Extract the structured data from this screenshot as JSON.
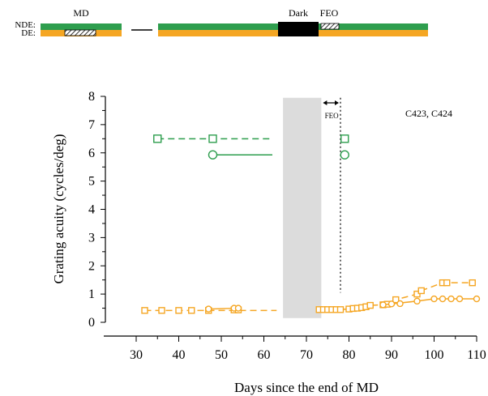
{
  "timeline": {
    "row_labels": [
      "NDE:",
      "DE:"
    ],
    "phase_labels": {
      "md": "MD",
      "dark": "Dark",
      "feo": "FEO"
    }
  },
  "colors": {
    "nde": "#2e9e4e",
    "de": "#f5a623",
    "dark_period": "#dcdcdc",
    "black": "#000000"
  },
  "chart_data": {
    "type": "scatter",
    "xlabel": "Days since the end of MD",
    "ylabel": "Grating acuity (cycles/deg)",
    "xlim": [
      30,
      110
    ],
    "ylim": [
      0,
      8
    ],
    "xticks": [
      30,
      40,
      50,
      60,
      70,
      80,
      90,
      100,
      110
    ],
    "yticks": [
      0,
      1,
      2,
      3,
      4,
      5,
      6,
      7,
      8
    ],
    "annotation": "C423, C424",
    "feo_label": "FEO",
    "dark_period": [
      64.5,
      73.5
    ],
    "feo_marker_x": 78,
    "series": [
      {
        "color": "#2e9e4e",
        "marker": "square",
        "dash": "dashed",
        "points": [
          [
            35,
            6.5
          ],
          [
            48,
            6.5
          ],
          [
            79,
            6.5
          ]
        ],
        "segments": [
          [
            [
              35,
              6.5
            ],
            [
              62,
              6.5
            ]
          ]
        ]
      },
      {
        "color": "#2e9e4e",
        "marker": "circle",
        "dash": "solid",
        "points": [
          [
            48,
            5.93
          ],
          [
            79,
            5.93
          ]
        ],
        "segments": [
          [
            [
              48,
              5.93
            ],
            [
              62,
              5.93
            ]
          ]
        ]
      },
      {
        "color": "#f5a623",
        "marker": "square",
        "dash": "dashed",
        "points": [
          [
            32,
            0.42
          ],
          [
            36,
            0.42
          ],
          [
            40,
            0.42
          ],
          [
            43,
            0.42
          ],
          [
            47,
            0.42
          ],
          [
            53,
            0.44
          ],
          [
            54,
            0.44
          ],
          [
            73,
            0.45
          ],
          [
            74,
            0.45
          ],
          [
            75,
            0.45
          ],
          [
            76,
            0.45
          ],
          [
            77,
            0.45
          ],
          [
            78,
            0.45
          ],
          [
            80,
            0.47
          ],
          [
            81,
            0.49
          ],
          [
            82,
            0.5
          ],
          [
            83,
            0.52
          ],
          [
            84,
            0.55
          ],
          [
            85,
            0.6
          ],
          [
            88,
            0.62
          ],
          [
            89,
            0.64
          ],
          [
            91,
            0.8
          ],
          [
            96,
            1.0
          ],
          [
            97,
            1.12
          ],
          [
            102,
            1.4
          ],
          [
            103,
            1.4
          ],
          [
            109,
            1.4
          ]
        ],
        "segments": [
          [
            [
              32,
              0.42
            ],
            [
              63,
              0.42
            ]
          ],
          [
            [
              73,
              0.45
            ],
            [
              78,
              0.45
            ],
            [
              80,
              0.47
            ],
            [
              84,
              0.55
            ],
            [
              85,
              0.6
            ],
            [
              88,
              0.62
            ],
            [
              89,
              0.64
            ],
            [
              91,
              0.8
            ],
            [
              96,
              1.0
            ],
            [
              97,
              1.12
            ],
            [
              102,
              1.4
            ],
            [
              103,
              1.4
            ],
            [
              109,
              1.4
            ]
          ]
        ]
      },
      {
        "color": "#f5a623",
        "marker": "circle",
        "dash": "solid",
        "points": [
          [
            47,
            0.47
          ],
          [
            53,
            0.5
          ],
          [
            54,
            0.5
          ],
          [
            88,
            0.62
          ],
          [
            90,
            0.65
          ],
          [
            92,
            0.66
          ],
          [
            96,
            0.75
          ],
          [
            100,
            0.83
          ],
          [
            102,
            0.83
          ],
          [
            104,
            0.83
          ],
          [
            106,
            0.83
          ],
          [
            110,
            0.83
          ]
        ],
        "segments": [
          [
            [
              47,
              0.47
            ],
            [
              54,
              0.5
            ]
          ],
          [
            [
              88,
              0.62
            ],
            [
              96,
              0.75
            ],
            [
              100,
              0.83
            ],
            [
              110,
              0.83
            ]
          ]
        ]
      }
    ]
  }
}
